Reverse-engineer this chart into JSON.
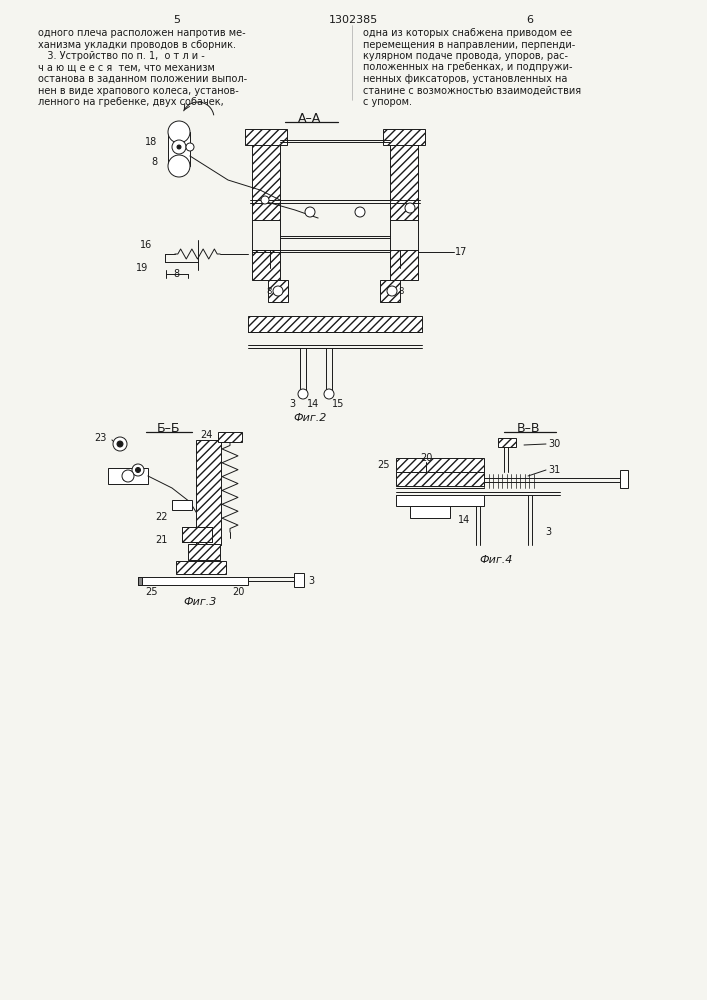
{
  "bg_color": "#f5f5f0",
  "line_color": "#1a1a1a",
  "page_num_left": "5",
  "page_num_right": "6",
  "patent_number": "1302385",
  "text_left": [
    "одного плеча расположен напротив ме-",
    "ханизма укладки проводов в сборник.",
    "   3. Устройство по п. 1,  о т л и -",
    "ч а ю щ е е с я  тем, что механизм",
    "останова в заданном положении выпол-",
    "нен в виде храпового колеса, установ-",
    "ленного на гребенке, двух собачек,"
  ],
  "text_right": [
    "одна из которых снабжена приводом ее",
    "перемещения в направлении, перпенди-",
    "кулярном подаче провода, упоров, рас-",
    "положенных на гребенках, и подпружи-",
    "ненных фиксаторов, установленных на",
    "станине с возможностью взаимодействия",
    "с упором."
  ],
  "section_aa": "А–А",
  "section_bb": "Б–Б",
  "section_vv": "В–В",
  "fig2_caption": "Фиг.2",
  "fig3_caption": "Фиг.3",
  "fig4_caption": "Фиг.4"
}
